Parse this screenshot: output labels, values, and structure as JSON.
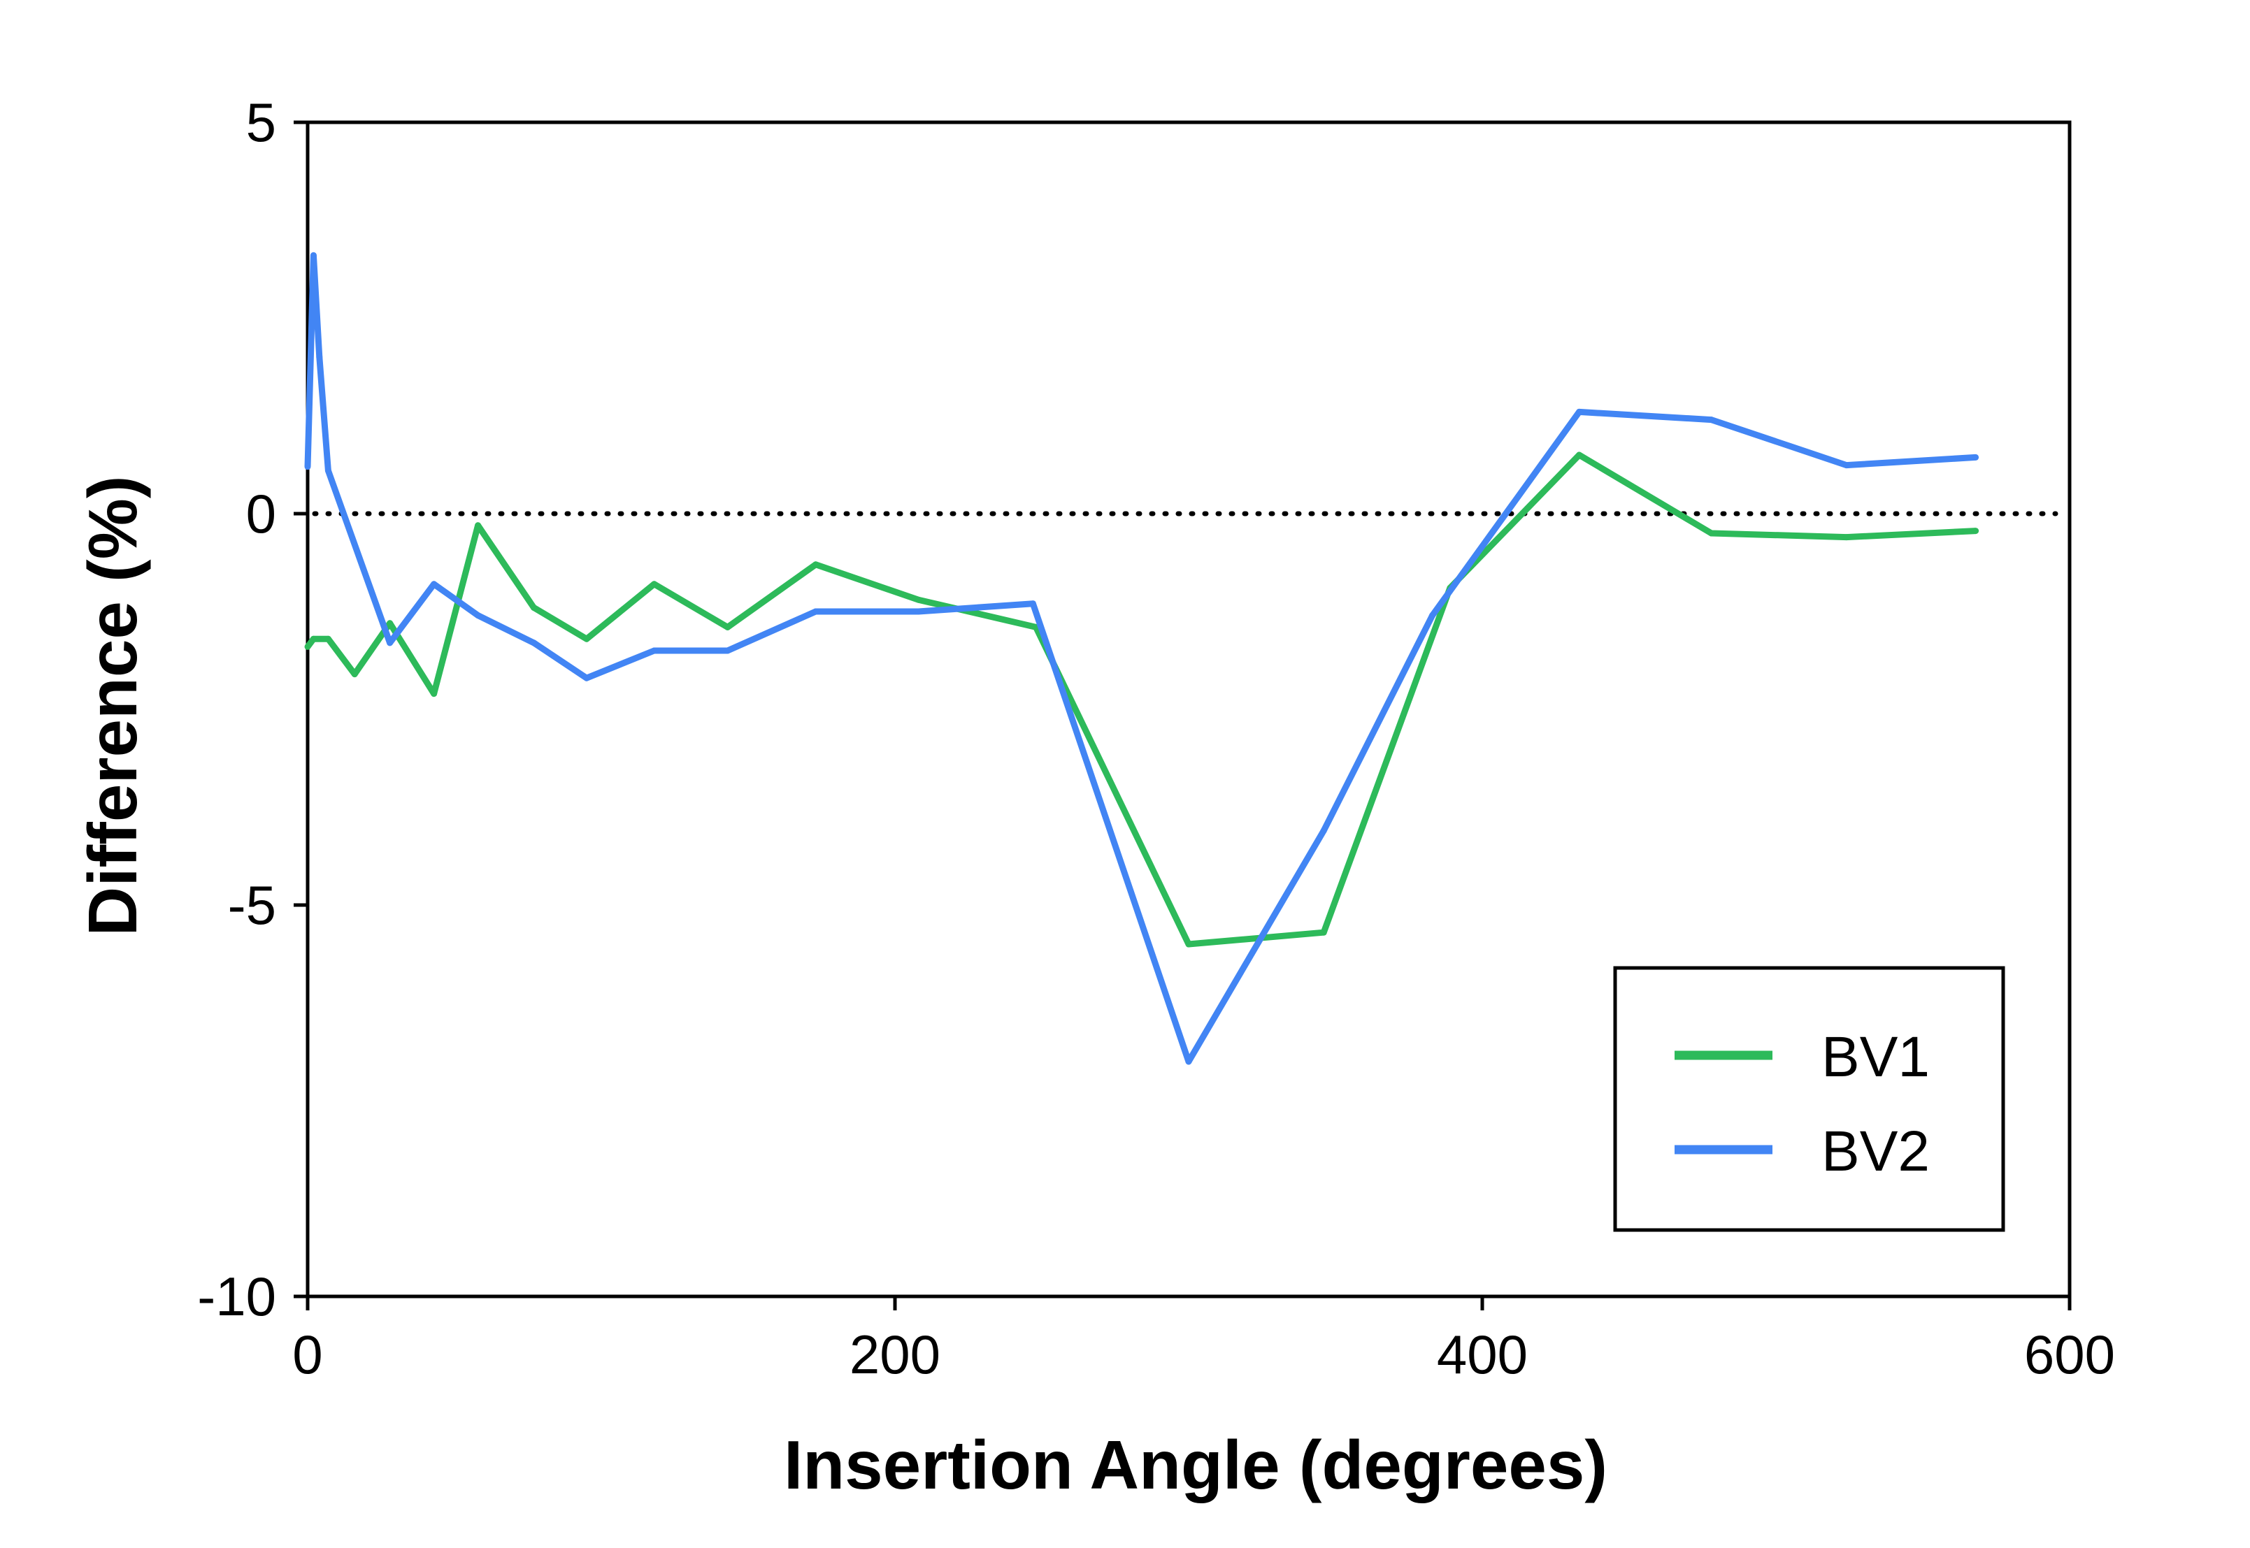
{
  "chart_data": {
    "type": "line",
    "xlabel": "Insertion Angle (degrees)",
    "ylabel": "Difference (%)",
    "xlim": [
      0,
      600
    ],
    "ylim": [
      -10,
      5
    ],
    "xticks": [
      0,
      200,
      400,
      600
    ],
    "yticks": [
      -10,
      -5,
      0,
      5
    ],
    "xtick_labels": [
      "0",
      "200",
      "400",
      "600"
    ],
    "ytick_labels": [
      "-10",
      "-5",
      "0",
      "5"
    ],
    "reference_line": {
      "y": 0,
      "style": "dotted"
    },
    "grid": false,
    "legend_position": "bottom-right",
    "series": [
      {
        "name": "BV1",
        "color": "#2dba5a",
        "points": [
          [
            0,
            -1.7
          ],
          [
            2,
            -1.6
          ],
          [
            7,
            -1.6
          ],
          [
            16,
            -2.05
          ],
          [
            28,
            -1.4
          ],
          [
            43,
            -2.3
          ],
          [
            58,
            -0.15
          ],
          [
            77,
            -1.2
          ],
          [
            95,
            -1.6
          ],
          [
            118,
            -0.9
          ],
          [
            143,
            -1.45
          ],
          [
            173,
            -0.65
          ],
          [
            208,
            -1.1
          ],
          [
            248,
            -1.45
          ],
          [
            300,
            -5.5
          ],
          [
            346,
            -5.35
          ],
          [
            389,
            -0.95
          ],
          [
            433,
            0.75
          ],
          [
            478,
            -0.25
          ],
          [
            524,
            -0.3
          ],
          [
            568,
            -0.22
          ]
        ]
      },
      {
        "name": "BV2",
        "color": "#4285f4",
        "points": [
          [
            0,
            0.6
          ],
          [
            2,
            3.3
          ],
          [
            4,
            2.0
          ],
          [
            7,
            0.55
          ],
          [
            28,
            -1.65
          ],
          [
            43,
            -0.9
          ],
          [
            58,
            -1.3
          ],
          [
            77,
            -1.65
          ],
          [
            95,
            -2.1
          ],
          [
            118,
            -1.75
          ],
          [
            143,
            -1.75
          ],
          [
            173,
            -1.25
          ],
          [
            208,
            -1.25
          ],
          [
            247,
            -1.15
          ],
          [
            300,
            -7.0
          ],
          [
            346,
            -4.05
          ],
          [
            383,
            -1.3
          ],
          [
            433,
            1.3
          ],
          [
            478,
            1.2
          ],
          [
            524,
            0.62
          ],
          [
            568,
            0.72
          ]
        ]
      }
    ]
  }
}
